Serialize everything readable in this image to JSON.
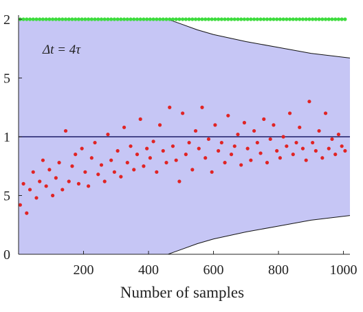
{
  "chart_data": {
    "type": "scatter",
    "annotation": "Δt = 4τ",
    "xlabel": "Number of samples",
    "xlim": [
      0,
      1020
    ],
    "ylim": [
      0,
      2
    ],
    "xticks": [
      200,
      400,
      600,
      800,
      1000
    ],
    "yticks": [
      0,
      {
        "value": 0.5,
        "label": "5"
      },
      1,
      {
        "value": 1.5,
        "label": "5"
      },
      2
    ],
    "series": [
      {
        "kind": "band",
        "color": "#c6c6f5",
        "x": [
          0,
          460,
          500,
          550,
          600,
          700,
          800,
          900,
          1020
        ],
        "upper": [
          2,
          2,
          1.96,
          1.91,
          1.87,
          1.81,
          1.76,
          1.71,
          1.67
        ],
        "lower": [
          0,
          0,
          0.04,
          0.09,
          0.13,
          0.19,
          0.24,
          0.29,
          0.33
        ]
      },
      {
        "kind": "line",
        "color": "#1c1c66",
        "x": [
          0,
          1020
        ],
        "values": [
          1,
          1
        ]
      },
      {
        "kind": "points",
        "color": "#e02424",
        "x": [
          5,
          15,
          25,
          35,
          45,
          55,
          65,
          75,
          85,
          95,
          105,
          115,
          125,
          135,
          145,
          155,
          165,
          175,
          185,
          195,
          205,
          215,
          225,
          235,
          245,
          255,
          265,
          275,
          285,
          295,
          305,
          315,
          325,
          335,
          345,
          355,
          365,
          375,
          385,
          395,
          405,
          415,
          425,
          435,
          445,
          455,
          465,
          475,
          485,
          495,
          505,
          515,
          525,
          535,
          545,
          555,
          565,
          575,
          585,
          595,
          605,
          615,
          625,
          635,
          645,
          655,
          665,
          675,
          685,
          695,
          705,
          715,
          725,
          735,
          745,
          755,
          765,
          775,
          785,
          795,
          805,
          815,
          825,
          835,
          845,
          855,
          865,
          875,
          885,
          895,
          905,
          915,
          925,
          935,
          945,
          955,
          965,
          975,
          985,
          995,
          1005
        ],
        "values": [
          0.42,
          0.6,
          0.35,
          0.55,
          0.7,
          0.48,
          0.62,
          0.8,
          0.58,
          0.72,
          0.5,
          0.65,
          0.78,
          0.55,
          1.05,
          0.62,
          0.75,
          0.85,
          0.6,
          0.9,
          0.7,
          0.58,
          0.82,
          0.95,
          0.68,
          0.76,
          0.62,
          1.02,
          0.8,
          0.7,
          0.88,
          0.66,
          1.08,
          0.78,
          0.92,
          0.72,
          0.85,
          1.15,
          0.75,
          0.9,
          0.82,
          0.96,
          0.7,
          1.1,
          0.88,
          0.78,
          1.25,
          0.92,
          0.8,
          0.62,
          1.2,
          0.85,
          0.95,
          0.72,
          1.05,
          0.9,
          1.25,
          0.82,
          0.98,
          0.7,
          1.1,
          0.88,
          0.95,
          0.78,
          1.18,
          0.85,
          0.92,
          1.02,
          0.76,
          1.12,
          0.9,
          0.8,
          1.05,
          0.95,
          0.86,
          1.15,
          0.78,
          0.98,
          1.1,
          0.88,
          0.82,
          1.0,
          0.92,
          1.2,
          0.85,
          0.95,
          1.08,
          0.9,
          0.8,
          1.3,
          0.95,
          0.88,
          1.05,
          0.82,
          1.2,
          0.9,
          0.98,
          0.85,
          1.02,
          0.92,
          0.88
        ]
      },
      {
        "kind": "points",
        "color": "#3ddc3d",
        "x": [
          5,
          15,
          25,
          35,
          45,
          55,
          65,
          75,
          85,
          95,
          105,
          115,
          125,
          135,
          145,
          155,
          165,
          175,
          185,
          195,
          205,
          215,
          225,
          235,
          245,
          255,
          265,
          275,
          285,
          295,
          305,
          315,
          325,
          335,
          345,
          355,
          365,
          375,
          385,
          395,
          405,
          415,
          425,
          435,
          445,
          455,
          465,
          475,
          485,
          495,
          505,
          515,
          525,
          535,
          545,
          555,
          565,
          575,
          585,
          595,
          605,
          615,
          625,
          635,
          645,
          655,
          665,
          675,
          685,
          695,
          705,
          715,
          725,
          735,
          745,
          755,
          765,
          775,
          785,
          795,
          805,
          815,
          825,
          835,
          845,
          855,
          865,
          875,
          885,
          895,
          905,
          915,
          925,
          935,
          945,
          955,
          965,
          975,
          985,
          995,
          1005
        ],
        "values": [
          2,
          2,
          2,
          2,
          2,
          2,
          2,
          2,
          2,
          2,
          2,
          2,
          2,
          2,
          2,
          2,
          2,
          2,
          2,
          2,
          2,
          2,
          2,
          2,
          2,
          2,
          2,
          2,
          2,
          2,
          2,
          2,
          2,
          2,
          2,
          2,
          2,
          2,
          2,
          2,
          2,
          2,
          2,
          2,
          2,
          2,
          2,
          2,
          2,
          2,
          2,
          2,
          2,
          2,
          2,
          2,
          2,
          2,
          2,
          2,
          2,
          2,
          2,
          2,
          2,
          2,
          2,
          2,
          2,
          2,
          2,
          2,
          2,
          2,
          2,
          2,
          2,
          2,
          2,
          2,
          2,
          2,
          2,
          2,
          2,
          2,
          2,
          2,
          2,
          2,
          2,
          2,
          2,
          2,
          2,
          2,
          2,
          2,
          2,
          2,
          2
        ]
      }
    ]
  }
}
